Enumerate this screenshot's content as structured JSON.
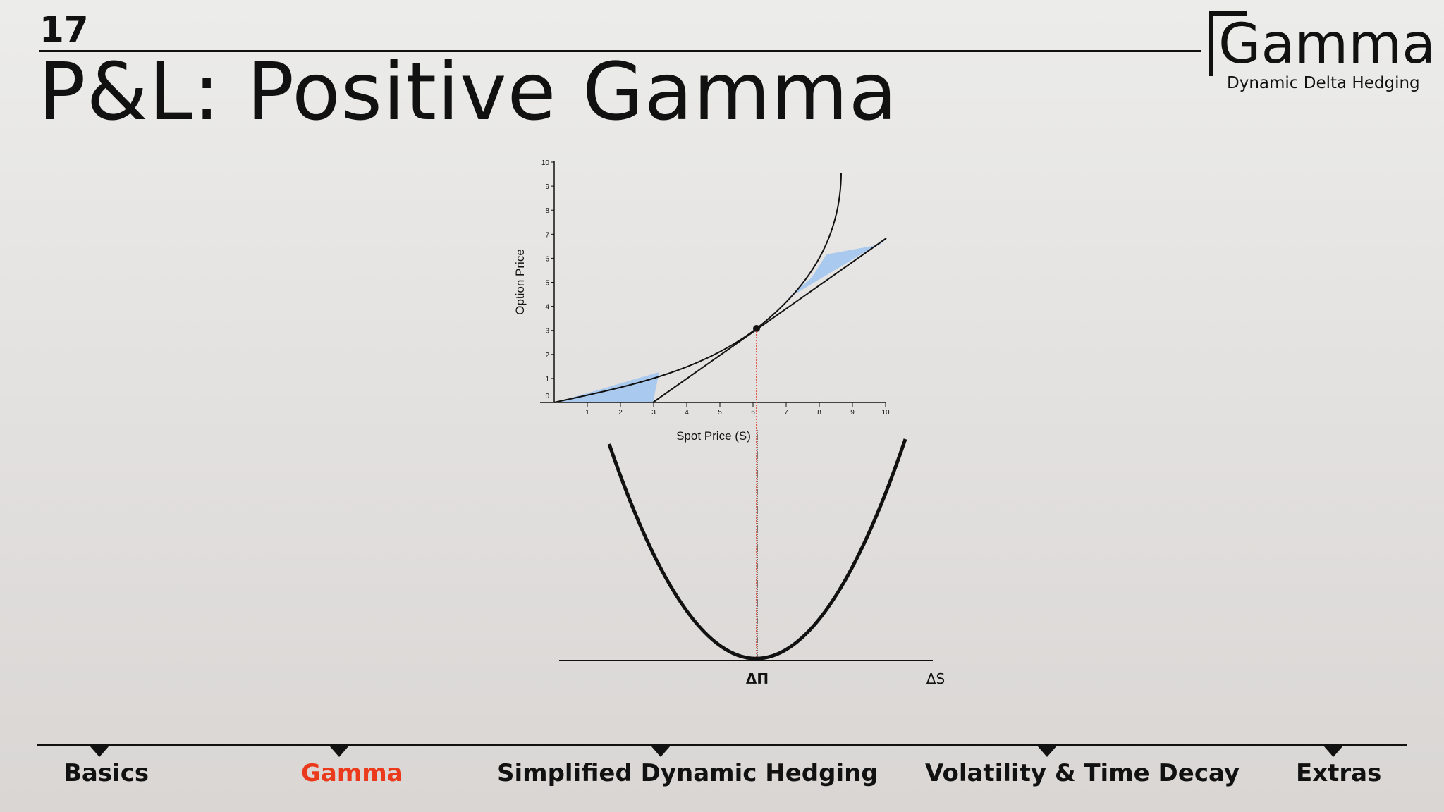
{
  "slide": {
    "number": "17",
    "title": "P&L: Positive Gamma"
  },
  "brand": {
    "name": "Gamma",
    "tagline": "Dynamic Delta Hedging"
  },
  "top_chart": {
    "ylabel": "Option Price",
    "xlabel": "Spot Price (S)",
    "x_ticks": [
      "1",
      "2",
      "3",
      "4",
      "5",
      "6",
      "7",
      "8",
      "9",
      "10"
    ],
    "y_ticks": [
      "0",
      "1",
      "2",
      "3",
      "4",
      "5",
      "6",
      "7",
      "8",
      "9",
      "10"
    ],
    "xlim": [
      0,
      10
    ],
    "ylim": [
      0,
      10
    ],
    "tangent_point": {
      "x": 6.15,
      "y": 3.1
    },
    "colors": {
      "fill": "#a9c9ee",
      "curve": "#111111",
      "guide": "#e0301e"
    }
  },
  "bottom_chart": {
    "y_axis_label": "ΔΠ",
    "x_axis_label": "ΔS"
  },
  "nav": {
    "items": [
      {
        "label": "Basics",
        "active": false
      },
      {
        "label": "Gamma",
        "active": true
      },
      {
        "label": "Simplified Dynamic Hedging",
        "active": false
      },
      {
        "label": "Volatility & Time Decay",
        "active": false
      },
      {
        "label": "Extras",
        "active": false
      }
    ],
    "active_color": "#ea3a1b"
  }
}
